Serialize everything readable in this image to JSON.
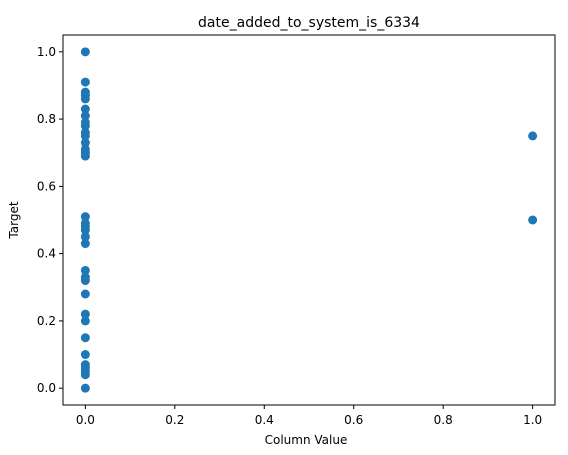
{
  "chart_data": {
    "type": "scatter",
    "title": "date_added_to_system_is_6334",
    "xlabel": "Column Value",
    "ylabel": "Target",
    "xlim": [
      -0.05,
      1.05
    ],
    "ylim": [
      -0.05,
      1.05
    ],
    "xticks": [
      "0.0",
      "0.2",
      "0.4",
      "0.6",
      "0.8",
      "1.0"
    ],
    "yticks": [
      "0.0",
      "0.2",
      "0.4",
      "0.6",
      "0.8",
      "1.0"
    ],
    "grid": false,
    "marker_color": "#1f77b4",
    "series": [
      {
        "points": [
          [
            0,
            0.0
          ],
          [
            0,
            0.04
          ],
          [
            0,
            0.05
          ],
          [
            0,
            0.06
          ],
          [
            0,
            0.07
          ],
          [
            0,
            0.1
          ],
          [
            0,
            0.15
          ],
          [
            0,
            0.2
          ],
          [
            0,
            0.22
          ],
          [
            0,
            0.28
          ],
          [
            0,
            0.32
          ],
          [
            0,
            0.33
          ],
          [
            0,
            0.35
          ],
          [
            0,
            0.43
          ],
          [
            0,
            0.45
          ],
          [
            0,
            0.47
          ],
          [
            0,
            0.48
          ],
          [
            0,
            0.49
          ],
          [
            0,
            0.51
          ],
          [
            0,
            0.69
          ],
          [
            0,
            0.7
          ],
          [
            0,
            0.71
          ],
          [
            0,
            0.73
          ],
          [
            0,
            0.75
          ],
          [
            0,
            0.76
          ],
          [
            0,
            0.78
          ],
          [
            0,
            0.79
          ],
          [
            0,
            0.81
          ],
          [
            0,
            0.83
          ],
          [
            0,
            0.86
          ],
          [
            0,
            0.87
          ],
          [
            0,
            0.88
          ],
          [
            0,
            0.91
          ],
          [
            0,
            1.0
          ],
          [
            1,
            0.75
          ],
          [
            1,
            0.5
          ]
        ]
      }
    ]
  }
}
